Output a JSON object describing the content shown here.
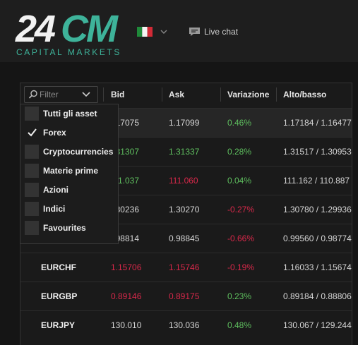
{
  "header": {
    "logo": {
      "number": "24",
      "letters": "CM",
      "tagline": "CAPITAL MARKETS"
    },
    "live_chat": "Live chat"
  },
  "table": {
    "filter": "Filter",
    "columns": [
      "Bid",
      "Ask",
      "Variazione",
      "Alto/basso"
    ],
    "rows": [
      {
        "bid": {
          "text": "17075",
          "color": "#d6d6d6"
        },
        "ask": {
          "text": "1.17099",
          "color": "#d6d6d6"
        },
        "change": {
          "text": "0.46%",
          "color": "#5fbf5f"
        },
        "range": {
          "text": "1.17184 / 1.16477",
          "color": "#d6d6d6"
        }
      },
      {
        "bid": {
          "text": "31307",
          "color": "#5fbf5f"
        },
        "ask": {
          "text": "1.31337",
          "color": "#5fbf5f"
        },
        "change": {
          "text": "0.28%",
          "color": "#5fbf5f"
        },
        "range": {
          "text": "1.31517 / 1.30953",
          "color": "#d6d6d6"
        }
      },
      {
        "bid": {
          "text": "1.037",
          "color": "#5fbf5f"
        },
        "ask": {
          "text": "111.060",
          "color": "#d8284a"
        },
        "change": {
          "text": "0.04%",
          "color": "#5fbf5f"
        },
        "range": {
          "text": "111.162 / 110.887",
          "color": "#d6d6d6"
        }
      },
      {
        "bid": {
          "text": "30236",
          "color": "#d6d6d6"
        },
        "ask": {
          "text": "1.30270",
          "color": "#d6d6d6"
        },
        "change": {
          "text": "-0.27%",
          "color": "#d8284a"
        },
        "range": {
          "text": "1.30780 / 1.29936",
          "color": "#d6d6d6"
        }
      },
      {
        "bid": {
          "text": "98814",
          "color": "#d6d6d6"
        },
        "ask": {
          "text": "0.98845",
          "color": "#d6d6d6"
        },
        "change": {
          "text": "-0.66%",
          "color": "#d8284a"
        },
        "range": {
          "text": "0.99560 / 0.98774",
          "color": "#d6d6d6"
        }
      },
      {
        "symbol": "EURCHF",
        "bid": {
          "text": "1.15706",
          "color": "#d8284a"
        },
        "ask": {
          "text": "1.15746",
          "color": "#d8284a"
        },
        "change": {
          "text": "-0.19%",
          "color": "#d8284a"
        },
        "range": {
          "text": "1.16033 / 1.15674",
          "color": "#d6d6d6"
        }
      },
      {
        "symbol": "EURGBP",
        "bid": {
          "text": "0.89146",
          "color": "#d8284a"
        },
        "ask": {
          "text": "0.89175",
          "color": "#d8284a"
        },
        "change": {
          "text": "0.23%",
          "color": "#5fbf5f"
        },
        "range": {
          "text": "0.89184 / 0.88806",
          "color": "#d6d6d6"
        }
      },
      {
        "symbol": "EURJPY",
        "bid": {
          "text": "130.010",
          "color": "#d6d6d6"
        },
        "ask": {
          "text": "130.036",
          "color": "#d6d6d6"
        },
        "change": {
          "text": "0.48%",
          "color": "#5fbf5f"
        },
        "range": {
          "text": "130.067 / 129.244",
          "color": "#d6d6d6"
        }
      }
    ]
  },
  "dropdown": {
    "items": [
      {
        "label": "Tutti gli asset",
        "checked": false
      },
      {
        "label": "Forex",
        "checked": true
      },
      {
        "label": "Cryptocurrencies",
        "checked": false
      },
      {
        "label": "Materie prime",
        "checked": false
      },
      {
        "label": "Azioni",
        "checked": false
      },
      {
        "label": "Indici",
        "checked": false
      },
      {
        "label": "Favourites",
        "checked": false
      }
    ]
  }
}
